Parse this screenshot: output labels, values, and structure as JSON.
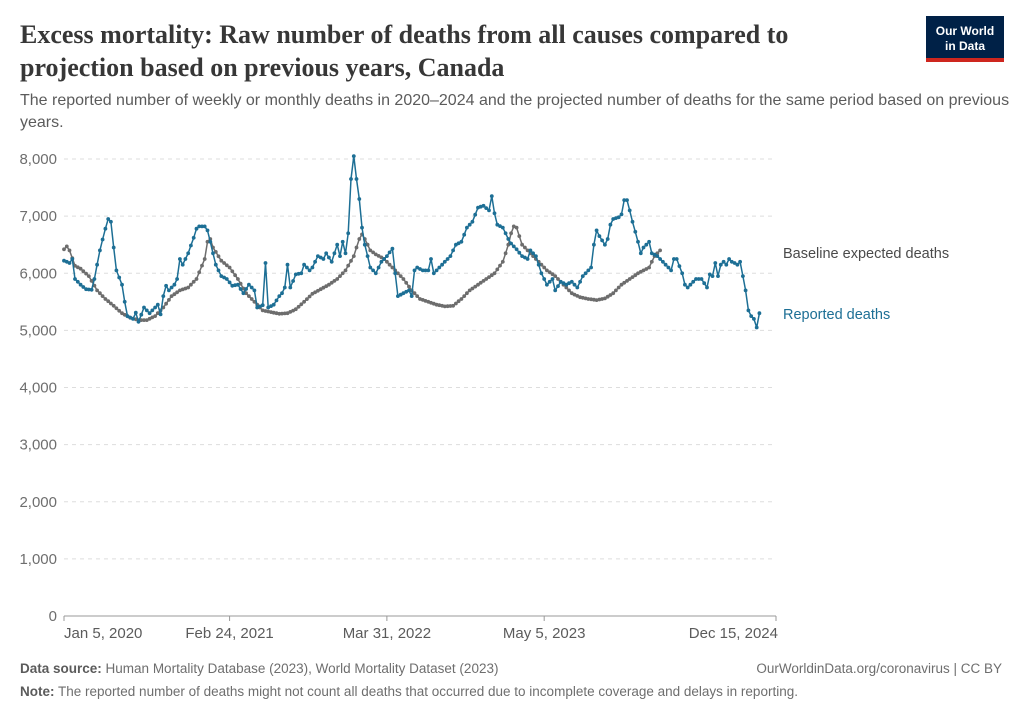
{
  "title": "Excess mortality: Raw number of deaths from all causes compared to projection based on previous years, Canada",
  "subtitle": "The reported number of weekly or monthly deaths in 2020–2024 and the projected number of deaths for the same period based on previous years.",
  "logo": {
    "line1": "Our World",
    "line2": "in Data",
    "bg": "#002147",
    "accent": "#ce261e"
  },
  "footer": {
    "source_label": "Data source:",
    "source_text": "Human Mortality Database (2023), World Mortality Dataset (2023)",
    "license": "OurWorldinData.org/coronavirus | CC BY",
    "note_label": "Note:",
    "note_text": "The reported number of deaths might not count all deaths that occurred due to incomplete coverage and delays in reporting."
  },
  "chart_data": {
    "type": "line",
    "x_unit": "weeks since Jan 5, 2020",
    "xlim": [
      0,
      258
    ],
    "ylim": [
      0,
      8000
    ],
    "y_ticks": [
      0,
      1000,
      2000,
      3000,
      4000,
      5000,
      6000,
      7000,
      8000
    ],
    "y_tick_labels": [
      "0",
      "1,000",
      "2,000",
      "3,000",
      "4,000",
      "5,000",
      "6,000",
      "7,000",
      "8,000"
    ],
    "x_ticks": [
      0,
      60,
      117,
      174,
      258
    ],
    "x_tick_labels": [
      "Jan 5, 2020",
      "Feb 24, 2021",
      "Mar 31, 2022",
      "May 5, 2023",
      "Dec 15, 2024"
    ],
    "grid": "horizontal dashed",
    "series": [
      {
        "name": "Baseline expected deaths",
        "color": "#6d6d6d",
        "keypoints": [
          [
            0,
            6420
          ],
          [
            1,
            6470
          ],
          [
            2,
            6400
          ],
          [
            4,
            6130
          ],
          [
            6,
            6080
          ],
          [
            9,
            5950
          ],
          [
            12,
            5700
          ],
          [
            15,
            5550
          ],
          [
            18,
            5430
          ],
          [
            21,
            5300
          ],
          [
            24,
            5220
          ],
          [
            27,
            5180
          ],
          [
            30,
            5180
          ],
          [
            33,
            5250
          ],
          [
            36,
            5400
          ],
          [
            39,
            5600
          ],
          [
            42,
            5700
          ],
          [
            45,
            5750
          ],
          [
            48,
            5900
          ],
          [
            51,
            6250
          ],
          [
            52,
            6550
          ],
          [
            53,
            6600
          ],
          [
            54,
            6450
          ],
          [
            57,
            6220
          ],
          [
            60,
            6100
          ],
          [
            63,
            5900
          ],
          [
            66,
            5650
          ],
          [
            69,
            5500
          ],
          [
            72,
            5350
          ],
          [
            75,
            5320
          ],
          [
            78,
            5290
          ],
          [
            81,
            5300
          ],
          [
            84,
            5370
          ],
          [
            87,
            5500
          ],
          [
            90,
            5640
          ],
          [
            93,
            5720
          ],
          [
            96,
            5800
          ],
          [
            99,
            5900
          ],
          [
            102,
            6050
          ],
          [
            105,
            6300
          ],
          [
            107,
            6600
          ],
          [
            108,
            6680
          ],
          [
            109,
            6600
          ],
          [
            111,
            6400
          ],
          [
            113,
            6330
          ],
          [
            116,
            6250
          ],
          [
            120,
            6050
          ],
          [
            123,
            5900
          ],
          [
            126,
            5700
          ],
          [
            129,
            5550
          ],
          [
            132,
            5500
          ],
          [
            135,
            5450
          ],
          [
            138,
            5420
          ],
          [
            141,
            5430
          ],
          [
            144,
            5550
          ],
          [
            147,
            5700
          ],
          [
            150,
            5800
          ],
          [
            153,
            5900
          ],
          [
            156,
            6000
          ],
          [
            159,
            6200
          ],
          [
            161,
            6500
          ],
          [
            162,
            6700
          ],
          [
            163,
            6820
          ],
          [
            164,
            6800
          ],
          [
            166,
            6500
          ],
          [
            169,
            6350
          ],
          [
            172,
            6200
          ],
          [
            175,
            6050
          ],
          [
            178,
            5950
          ],
          [
            181,
            5800
          ],
          [
            184,
            5650
          ],
          [
            187,
            5580
          ],
          [
            190,
            5550
          ],
          [
            193,
            5530
          ],
          [
            196,
            5560
          ],
          [
            199,
            5650
          ],
          [
            202,
            5800
          ],
          [
            205,
            5900
          ],
          [
            208,
            6000
          ],
          [
            212,
            6100
          ],
          [
            214,
            6300
          ],
          [
            216,
            6400
          ]
        ]
      },
      {
        "name": "Reported deaths",
        "color": "#1d6f95",
        "keypoints": [
          [
            0,
            6220
          ],
          [
            2,
            6180
          ],
          [
            3,
            6250
          ],
          [
            4,
            5900
          ],
          [
            6,
            5800
          ],
          [
            8,
            5720
          ],
          [
            10,
            5710
          ],
          [
            11,
            5900
          ],
          [
            13,
            6400
          ],
          [
            15,
            6780
          ],
          [
            16,
            6950
          ],
          [
            17,
            6900
          ],
          [
            18,
            6450
          ],
          [
            19,
            6050
          ],
          [
            21,
            5800
          ],
          [
            22,
            5500
          ],
          [
            23,
            5250
          ],
          [
            25,
            5200
          ],
          [
            26,
            5310
          ],
          [
            27,
            5150
          ],
          [
            29,
            5400
          ],
          [
            31,
            5300
          ],
          [
            33,
            5400
          ],
          [
            34,
            5450
          ],
          [
            35,
            5280
          ],
          [
            36,
            5600
          ],
          [
            37,
            5780
          ],
          [
            38,
            5700
          ],
          [
            40,
            5800
          ],
          [
            41,
            5900
          ],
          [
            42,
            6250
          ],
          [
            43,
            6150
          ],
          [
            45,
            6350
          ],
          [
            47,
            6620
          ],
          [
            48,
            6780
          ],
          [
            49,
            6820
          ],
          [
            51,
            6820
          ],
          [
            52,
            6750
          ],
          [
            53,
            6550
          ],
          [
            55,
            6150
          ],
          [
            57,
            5950
          ],
          [
            59,
            5900
          ],
          [
            61,
            5780
          ],
          [
            63,
            5800
          ],
          [
            65,
            5650
          ],
          [
            67,
            5800
          ],
          [
            69,
            5700
          ],
          [
            70,
            5400
          ],
          [
            72,
            5440
          ],
          [
            73,
            6180
          ],
          [
            74,
            5400
          ],
          [
            76,
            5450
          ],
          [
            78,
            5600
          ],
          [
            79,
            5650
          ],
          [
            80,
            5750
          ],
          [
            81,
            6150
          ],
          [
            82,
            5750
          ],
          [
            84,
            5980
          ],
          [
            86,
            6000
          ],
          [
            87,
            6150
          ],
          [
            89,
            6050
          ],
          [
            90,
            6100
          ],
          [
            92,
            6300
          ],
          [
            94,
            6250
          ],
          [
            95,
            6350
          ],
          [
            97,
            6200
          ],
          [
            99,
            6500
          ],
          [
            100,
            6300
          ],
          [
            101,
            6550
          ],
          [
            102,
            6350
          ],
          [
            103,
            6700
          ],
          [
            104,
            7650
          ],
          [
            105,
            8050
          ],
          [
            106,
            7650
          ],
          [
            107,
            7300
          ],
          [
            108,
            6800
          ],
          [
            109,
            6500
          ],
          [
            110,
            6300
          ],
          [
            111,
            6100
          ],
          [
            113,
            6000
          ],
          [
            115,
            6200
          ],
          [
            117,
            6300
          ],
          [
            119,
            6430
          ],
          [
            120,
            6000
          ],
          [
            121,
            5600
          ],
          [
            123,
            5650
          ],
          [
            125,
            5700
          ],
          [
            126,
            5600
          ],
          [
            127,
            6050
          ],
          [
            128,
            6100
          ],
          [
            130,
            6050
          ],
          [
            132,
            6050
          ],
          [
            133,
            6250
          ],
          [
            134,
            6000
          ],
          [
            136,
            6100
          ],
          [
            138,
            6200
          ],
          [
            140,
            6300
          ],
          [
            142,
            6500
          ],
          [
            144,
            6550
          ],
          [
            146,
            6800
          ],
          [
            148,
            6900
          ],
          [
            150,
            7150
          ],
          [
            152,
            7180
          ],
          [
            154,
            7100
          ],
          [
            155,
            7350
          ],
          [
            156,
            7050
          ],
          [
            157,
            6850
          ],
          [
            159,
            6800
          ],
          [
            160,
            6700
          ],
          [
            161,
            6600
          ],
          [
            162,
            6520
          ],
          [
            164,
            6420
          ],
          [
            166,
            6300
          ],
          [
            168,
            6250
          ],
          [
            169,
            6400
          ],
          [
            171,
            6300
          ],
          [
            173,
            6000
          ],
          [
            175,
            5800
          ],
          [
            177,
            5900
          ],
          [
            178,
            5700
          ],
          [
            180,
            5850
          ],
          [
            182,
            5800
          ],
          [
            184,
            5850
          ],
          [
            186,
            5750
          ],
          [
            188,
            5950
          ],
          [
            190,
            6050
          ],
          [
            191,
            6100
          ],
          [
            192,
            6500
          ],
          [
            193,
            6750
          ],
          [
            194,
            6650
          ],
          [
            196,
            6500
          ],
          [
            197,
            6600
          ],
          [
            198,
            6850
          ],
          [
            199,
            6950
          ],
          [
            201,
            6980
          ],
          [
            202,
            7030
          ],
          [
            203,
            7280
          ],
          [
            204,
            7280
          ],
          [
            205,
            7100
          ],
          [
            206,
            6900
          ],
          [
            208,
            6550
          ],
          [
            209,
            6350
          ],
          [
            210,
            6450
          ],
          [
            212,
            6550
          ],
          [
            213,
            6350
          ],
          [
            215,
            6300
          ],
          [
            216,
            6250
          ],
          [
            218,
            6150
          ],
          [
            220,
            6050
          ],
          [
            221,
            6250
          ],
          [
            222,
            6250
          ],
          [
            224,
            6000
          ],
          [
            225,
            5800
          ],
          [
            226,
            5750
          ],
          [
            228,
            5850
          ],
          [
            229,
            5900
          ],
          [
            231,
            5900
          ],
          [
            233,
            5750
          ],
          [
            234,
            5980
          ],
          [
            235,
            5950
          ],
          [
            236,
            6180
          ],
          [
            237,
            5950
          ],
          [
            238,
            6150
          ],
          [
            239,
            6200
          ],
          [
            240,
            6150
          ],
          [
            241,
            6250
          ],
          [
            242,
            6200
          ],
          [
            243,
            6180
          ],
          [
            244,
            6150
          ],
          [
            245,
            6200
          ],
          [
            246,
            5950
          ],
          [
            247,
            5700
          ],
          [
            248,
            5350
          ],
          [
            249,
            5250
          ],
          [
            250,
            5200
          ],
          [
            251,
            5050
          ],
          [
            252,
            5300
          ]
        ]
      }
    ]
  }
}
